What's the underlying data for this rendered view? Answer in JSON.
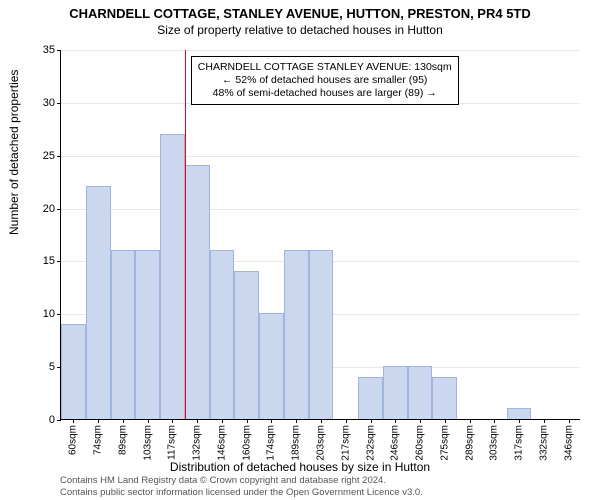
{
  "title_main": "CHARNDELL COTTAGE, STANLEY AVENUE, HUTTON, PRESTON, PR4 5TD",
  "title_sub": "Size of property relative to detached houses in Hutton",
  "chart": {
    "type": "histogram",
    "y_axis_label": "Number of detached properties",
    "x_axis_label": "Distribution of detached houses by size in Hutton",
    "ylim": [
      0,
      35
    ],
    "ytick_step": 5,
    "y_ticks": [
      0,
      5,
      10,
      15,
      20,
      25,
      30,
      35
    ],
    "x_tick_labels": [
      "60sqm",
      "74sqm",
      "89sqm",
      "103sqm",
      "117sqm",
      "132sqm",
      "146sqm",
      "160sqm",
      "174sqm",
      "189sqm",
      "203sqm",
      "217sqm",
      "232sqm",
      "246sqm",
      "260sqm",
      "275sqm",
      "289sqm",
      "303sqm",
      "317sqm",
      "332sqm",
      "346sqm"
    ],
    "bar_values": [
      9,
      22,
      16,
      16,
      27,
      24,
      16,
      14,
      10,
      16,
      16,
      0,
      4,
      5,
      5,
      4,
      0,
      0,
      1,
      0,
      0
    ],
    "bar_fill": "#cad7ef",
    "bar_stroke": "#9fb4de",
    "grid_color": "#e8e8e8",
    "background": "#ffffff",
    "reference_line": {
      "position_bin_edge": 5,
      "color": "#ff0000",
      "width": 1
    }
  },
  "annotation": {
    "line1": "CHARNDELL COTTAGE STANLEY AVENUE: 130sqm",
    "line2": "← 52% of detached houses are smaller (95)",
    "line3": "48% of semi-detached houses are larger (89) →"
  },
  "footer": {
    "line1": "Contains HM Land Registry data © Crown copyright and database right 2024.",
    "line2": "Contains public sector information licensed under the Open Government Licence v3.0."
  }
}
